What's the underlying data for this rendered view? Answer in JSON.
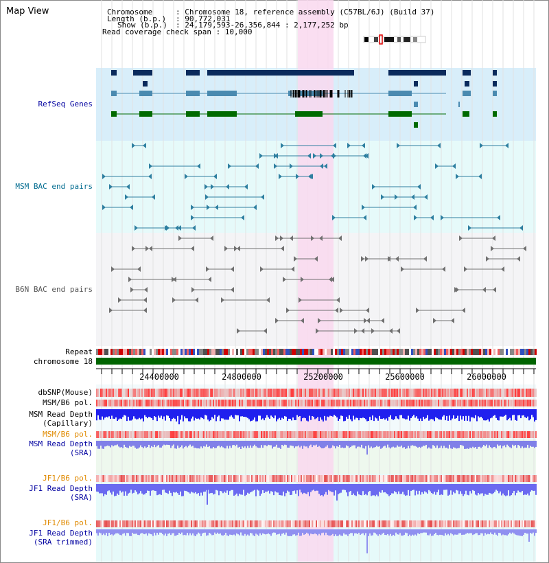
{
  "title": "Map View",
  "info": {
    "chromosome_key": "Chromosome",
    "chromosome_val": ": Chromosome 18, reference assembly (C57BL/6J) (Build 37)",
    "length_key": "Length (b.p.)",
    "length_val": ": 90,772,031",
    "show_key": "Show (b.p.)",
    "show_val": ": 24,179,593-26,356,844 : 2,177,252 bp",
    "read_check": "Read coverage check span : 10,000"
  },
  "tracks": {
    "refseq": "RefSeq Genes",
    "msm_bac": "MSM BAC end pairs",
    "b6n_bac": "B6N BAC end pairs",
    "repeat": "Repeat",
    "chromosome": "chromosome 18",
    "dbsnp": "dbSNP(Mouse)",
    "msm_b6_pol_1": "MSM/B6 pol.",
    "msm_depth_cap_1": "MSM Read Depth",
    "msm_depth_cap_2": "(Capillary)",
    "msm_b6_pol_2": "MSM/B6 pol.",
    "msm_depth_sra_1": "MSM Read Depth",
    "msm_depth_sra_2": "(SRA)",
    "jf1_b6_pol_1": "JF1/B6 pol.",
    "jf1_depth_sra_1": "JF1 Read Depth",
    "jf1_depth_sra_2": "(SRA)",
    "jf1_b6_pol_2": "JF1/B6 pol.",
    "jf1_depth_trim_1": "JF1 Read Depth",
    "jf1_depth_trim_2": "(SRA trimmed)"
  },
  "axis": {
    "ticks": [
      "24400000",
      "24800000",
      "25200000",
      "25600000",
      "26000000"
    ]
  },
  "colors": {
    "refseq_bg": "#d8eefa",
    "msm_bg": "#e6fafa",
    "b6n_bg": "#f4f4f6",
    "highlight": "#f9d8ee",
    "gene_dark": "#0a2a5c",
    "gene_mid": "#4a8ab0",
    "gene_green": "#006a00",
    "msm_pair": "#2e7fa0",
    "b6n_pair": "#707070",
    "chromosome_bar": "#006400",
    "label_blue": "#0000a0",
    "label_teal": "#006b8f",
    "label_orange": "#e08a00"
  }
}
